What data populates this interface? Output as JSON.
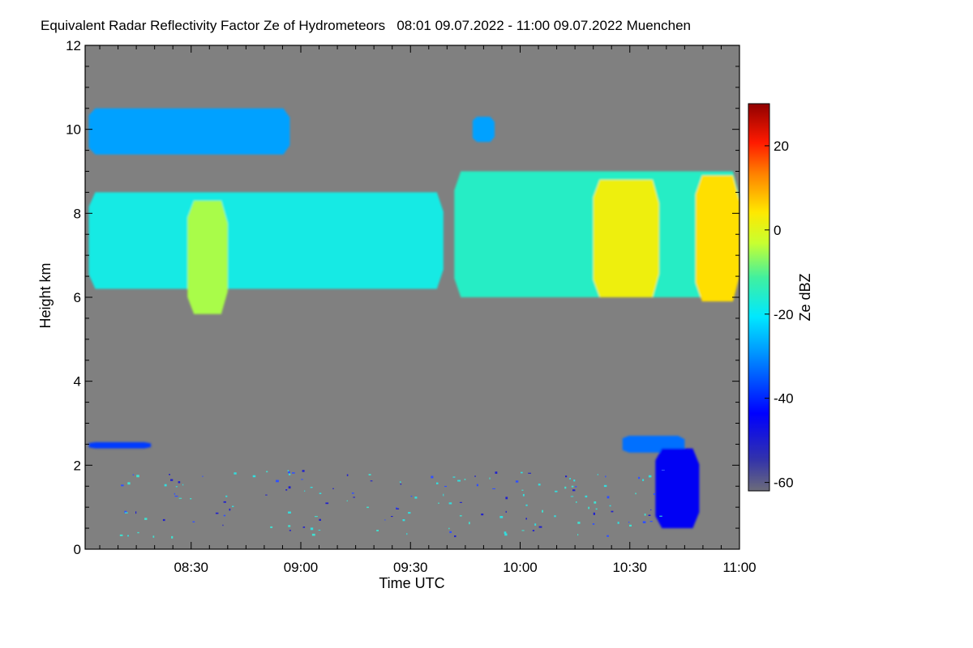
{
  "chart_data": {
    "type": "heatmap",
    "title": "Equivalent Radar Reflectivity Factor Ze of Hydrometeors   08:01 09.07.2022 - 11:00 09.07.2022 Muenchen",
    "xlabel": "Time UTC",
    "ylabel": "Height km",
    "x_tick_labels": [
      "08:30",
      "09:00",
      "09:30",
      "10:00",
      "10:30",
      "11:00"
    ],
    "x_tick_minutes": [
      30,
      60,
      90,
      120,
      150,
      180
    ],
    "xlim_minutes": [
      1,
      180
    ],
    "y_tick_labels": [
      "0",
      "2",
      "4",
      "6",
      "8",
      "10",
      "12"
    ],
    "y_ticks": [
      0,
      2,
      4,
      6,
      8,
      10,
      12
    ],
    "ylim": [
      0,
      12
    ],
    "colorbar": {
      "label": "Ze dBZ",
      "range": [
        -62,
        30
      ],
      "tick_labels": [
        "-60",
        "-40",
        "-20",
        "0",
        "20"
      ],
      "ticks": [
        -60,
        -40,
        -20,
        0,
        20
      ]
    },
    "background_color": "#808080",
    "features": [
      {
        "name": "cirrus layer ~10 km",
        "start_min": 2,
        "end_min": 57,
        "base_km": 9.4,
        "top_km": 10.5,
        "ze_dbz": -28
      },
      {
        "name": "ice cloud 6-8.5 km early",
        "start_min": 2,
        "end_min": 99,
        "base_km": 6.2,
        "top_km": 8.5,
        "ze_dbz": -18
      },
      {
        "name": "core 08:30-08:40",
        "start_min": 29,
        "end_min": 40,
        "base_km": 5.6,
        "top_km": 8.3,
        "ze_dbz": -5
      },
      {
        "name": "cirrus patch ~10 km",
        "start_min": 107,
        "end_min": 113,
        "base_km": 9.7,
        "top_km": 10.3,
        "ze_dbz": -28
      },
      {
        "name": "ice cloud 6-9 km late",
        "start_min": 102,
        "end_min": 180,
        "base_km": 6.0,
        "top_km": 9.0,
        "ze_dbz": -15
      },
      {
        "name": "core ~10:30",
        "start_min": 140,
        "end_min": 158,
        "base_km": 6.0,
        "top_km": 8.8,
        "ze_dbz": 2
      },
      {
        "name": "core ~10:50",
        "start_min": 168,
        "end_min": 180,
        "base_km": 5.9,
        "top_km": 8.9,
        "ze_dbz": 5
      },
      {
        "name": "thin layer ~2.5 km",
        "start_min": 2,
        "end_min": 19,
        "base_km": 2.4,
        "top_km": 2.55,
        "ze_dbz": -38
      },
      {
        "name": "layer ~2.5 km late",
        "start_min": 148,
        "end_min": 165,
        "base_km": 2.3,
        "top_km": 2.7,
        "ze_dbz": -33
      },
      {
        "name": "fall streak",
        "start_min": 157,
        "end_min": 169,
        "base_km": 0.5,
        "top_km": 2.4,
        "ze_dbz": -45
      }
    ]
  }
}
